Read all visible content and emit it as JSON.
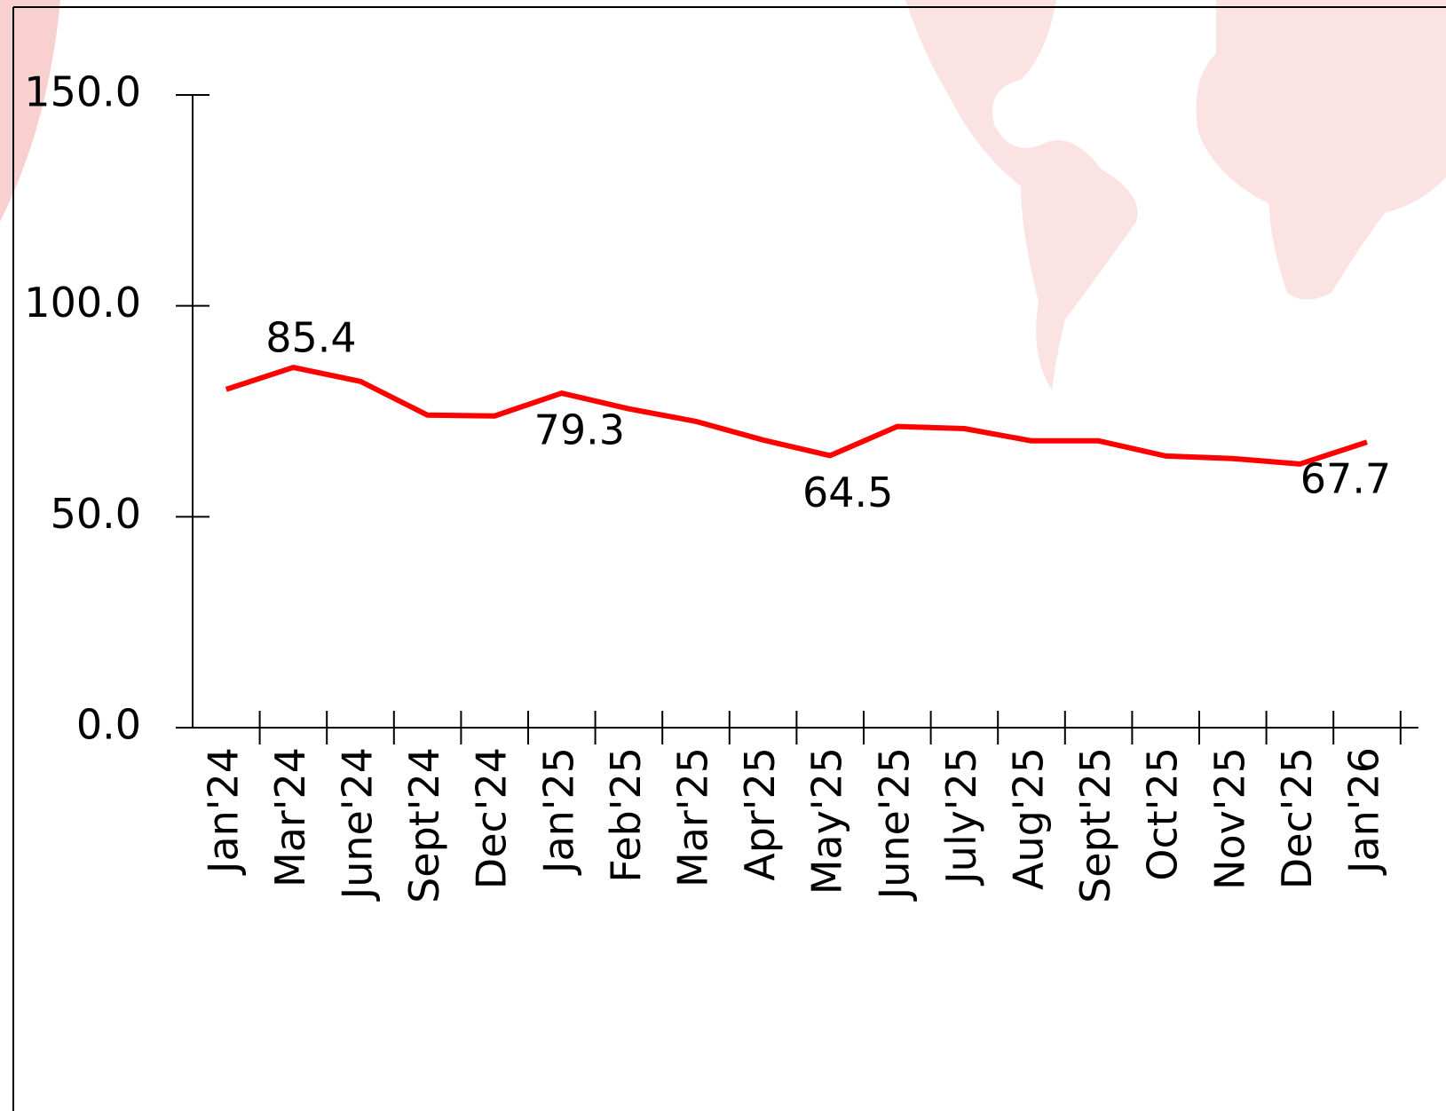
{
  "chart_data": {
    "type": "line",
    "categories": [
      "Jan'24",
      "Mar'24",
      "June'24",
      "Sept'24",
      "Dec'24",
      "Jan'25",
      "Feb'25",
      "Mar'25",
      "Apr'25",
      "May'25",
      "June'25",
      "July'25",
      "Aug'25",
      "Sept'25",
      "Oct'25",
      "Nov'25",
      "Dec'25",
      "Jan'26"
    ],
    "series": [
      {
        "color": "#ff0000",
        "values": [
          80.2,
          85.4,
          82.1,
          74.1,
          73.9,
          79.3,
          75.6,
          72.6,
          68.2,
          64.5,
          71.4,
          70.9,
          68.0,
          68.0,
          64.4,
          63.8,
          62.5,
          67.7
        ],
        "value_labels": [
          null,
          "85.4",
          null,
          null,
          null,
          "79.3",
          null,
          null,
          null,
          "64.5",
          null,
          null,
          null,
          null,
          null,
          null,
          null,
          "67.7"
        ]
      }
    ],
    "ylim": [
      0,
      150
    ],
    "yticks": [
      {
        "value": 0,
        "label": "0.0"
      },
      {
        "value": 50,
        "label": "50.0"
      },
      {
        "value": 100,
        "label": "100.0"
      },
      {
        "value": 150,
        "label": "150.0"
      }
    ],
    "grid": false
  }
}
